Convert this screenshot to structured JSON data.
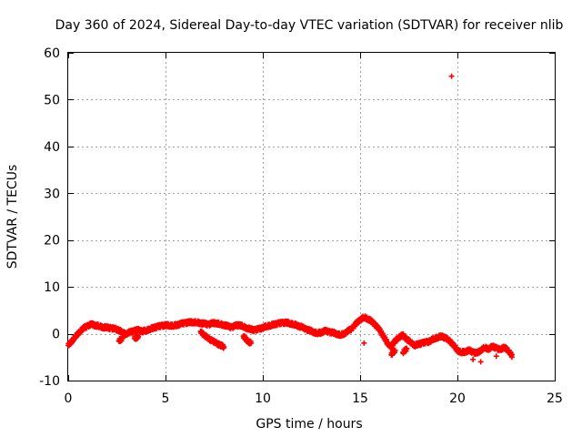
{
  "chart_data": {
    "type": "scatter",
    "title": "Day 360 of 2024, Sidereal Day-to-day VTEC variation (SDTVAR) for receiver nlib",
    "xlabel": "GPS time / hours",
    "ylabel": "SDTVAR / TECUs",
    "xlim": [
      0,
      25
    ],
    "ylim": [
      -10,
      60
    ],
    "xticks": [
      0,
      5,
      10,
      15,
      20,
      25
    ],
    "yticks": [
      -10,
      0,
      10,
      20,
      30,
      40,
      50,
      60
    ],
    "grid": true,
    "marker": "+",
    "color": "#ff0000",
    "series": [
      {
        "name": "SDTVAR",
        "x": [
          0.0,
          0.2,
          0.4,
          0.6,
          0.8,
          1.0,
          1.2,
          1.4,
          1.6,
          1.8,
          2.0,
          2.2,
          2.4,
          2.6,
          2.8,
          3.0,
          3.2,
          3.4,
          3.6,
          3.8,
          4.0,
          4.2,
          4.4,
          4.6,
          4.8,
          5.0,
          5.2,
          5.4,
          5.6,
          5.8,
          6.0,
          6.2,
          6.4,
          6.6,
          6.8,
          7.0,
          7.2,
          7.4,
          7.6,
          7.8,
          8.0,
          8.2,
          8.4,
          8.6,
          8.8,
          9.0,
          9.2,
          9.4,
          9.6,
          9.8,
          10.0,
          10.2,
          10.4,
          10.6,
          10.8,
          11.0,
          11.2,
          11.4,
          11.6,
          11.8,
          12.0,
          12.2,
          12.4,
          12.6,
          12.8,
          13.0,
          13.2,
          13.4,
          13.6,
          13.8,
          14.0,
          14.2,
          14.4,
          14.6,
          14.8,
          15.0,
          15.2,
          15.4,
          15.6,
          15.8,
          16.0,
          16.2,
          16.4,
          16.6,
          16.8,
          17.0,
          17.2,
          17.4,
          17.6,
          17.8,
          18.0,
          18.2,
          18.4,
          18.6,
          18.8,
          19.0,
          19.2,
          19.4,
          19.6,
          19.8,
          20.0,
          20.2,
          20.4,
          20.6,
          20.8,
          21.0,
          21.2,
          21.4,
          21.6,
          21.8,
          22.0,
          22.2,
          22.4,
          22.6,
          22.8,
          2.6,
          2.8,
          3.4,
          3.6,
          6.8,
          7.0,
          7.2,
          7.4,
          7.6,
          7.8,
          8.0,
          9.0,
          9.2,
          9.4,
          15.2,
          16.6,
          16.8,
          17.2,
          17.4,
          20.8,
          21.2,
          22.0,
          22.8,
          19.7
        ],
        "y": [
          -2.5,
          -1.5,
          -0.5,
          0.5,
          1.2,
          1.7,
          2.0,
          1.8,
          1.6,
          1.4,
          1.3,
          1.2,
          1.0,
          0.8,
          0.2,
          0.0,
          0.4,
          0.6,
          0.8,
          0.5,
          0.7,
          1.0,
          1.3,
          1.5,
          1.7,
          1.8,
          1.8,
          1.7,
          1.9,
          2.1,
          2.3,
          2.4,
          2.5,
          2.4,
          2.3,
          2.1,
          2.0,
          2.2,
          2.3,
          2.0,
          1.9,
          1.6,
          1.4,
          1.7,
          1.9,
          1.5,
          1.2,
          0.9,
          0.8,
          1.0,
          1.3,
          1.6,
          1.8,
          2.0,
          2.2,
          2.3,
          2.4,
          2.2,
          2.0,
          1.7,
          1.4,
          1.0,
          0.7,
          0.4,
          0.1,
          0.3,
          0.6,
          0.4,
          0.2,
          0.0,
          -0.3,
          0.1,
          0.6,
          1.2,
          2.2,
          3.0,
          3.5,
          3.2,
          2.6,
          1.8,
          0.8,
          -0.5,
          -2.0,
          -2.8,
          -1.5,
          -0.8,
          -0.3,
          -1.2,
          -1.8,
          -2.5,
          -2.2,
          -2.0,
          -1.8,
          -1.6,
          -1.0,
          -0.8,
          -0.5,
          -1.0,
          -1.5,
          -2.5,
          -3.5,
          -4.0,
          -3.8,
          -3.6,
          -3.9,
          -4.2,
          -3.5,
          -3.0,
          -3.2,
          -2.8,
          -3.0,
          -3.5,
          -2.8,
          -3.6,
          -4.5,
          -1.5,
          -1.0,
          -1.0,
          -0.6,
          0.5,
          -0.3,
          -1.0,
          -1.5,
          -2.0,
          -2.4,
          -2.8,
          -0.5,
          -1.5,
          -2.0,
          -2.0,
          -4.5,
          -3.5,
          -4.0,
          -3.2,
          -5.5,
          -6.0,
          -4.8,
          -5.0,
          55
        ]
      }
    ]
  }
}
